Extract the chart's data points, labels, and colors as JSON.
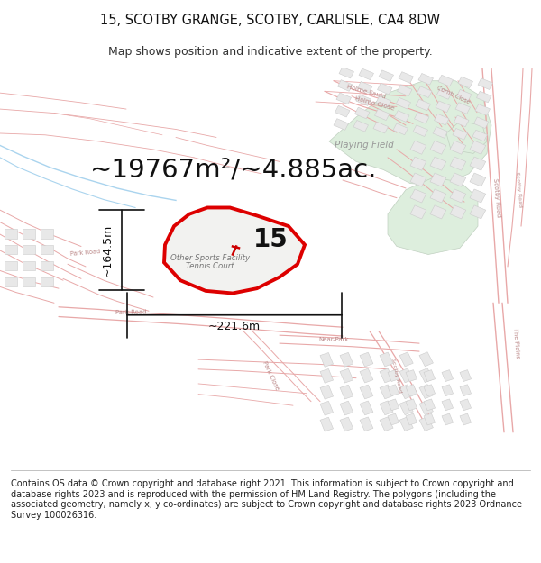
{
  "title_line1": "15, SCOTBY GRANGE, SCOTBY, CARLISLE, CA4 8DW",
  "title_line2": "Map shows position and indicative extent of the property.",
  "area_text": "~19767m²/~4.885ac.",
  "property_number": "15",
  "label_height": "~164.5m",
  "label_width": "~221.6m",
  "sports_label1": "Other Sports Facility",
  "sports_label2": "Tennis Court",
  "playing_field_label": "Playing Field",
  "copyright_text": "Contains OS data © Crown copyright and database right 2021. This information is subject to Crown copyright and database rights 2023 and is reproduced with the permission of HM Land Registry. The polygons (including the associated geometry, namely x, y co-ordinates) are subject to Crown copyright and database rights 2023 Ordnance Survey 100026316.",
  "bg_color": "#ffffff",
  "road_color": "#e8a8a8",
  "building_fill": "#e8e8e8",
  "building_edge": "#cccccc",
  "property_outline_color": "#dd0000",
  "property_fill_color": "#f0f0ef",
  "green_color": "#ddeedd",
  "green_edge": "#c0d0c0",
  "water_color": "#aad4ee",
  "title_fontsize": 10.5,
  "subtitle_fontsize": 9,
  "area_fontsize": 21,
  "dim_fontsize": 9,
  "copyright_fontsize": 7.0,
  "label_color": "#888888",
  "road_label_color": "#bb8888"
}
